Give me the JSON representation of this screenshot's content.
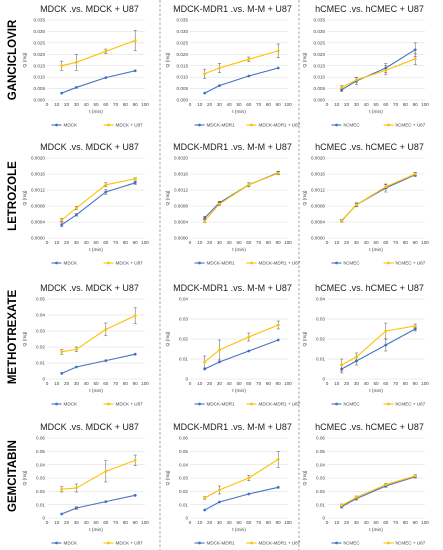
{
  "row_labels": [
    "GANCICLOVIR",
    "LETROZOLE",
    "METHOTREXATE",
    "GEMCITABIN"
  ],
  "colors": {
    "series1": "#4472c4",
    "series2": "#ffc000",
    "divider": "#7f7f7f",
    "grid": "#d9d9d9"
  },
  "chart_data": [
    {
      "type": "line",
      "title": "MDCK .vs. MDCK + U87",
      "xlabel": "t (min)",
      "ylabel": "Q (mg)",
      "xlim": [
        0,
        100
      ],
      "xticks": [
        0,
        10,
        20,
        30,
        40,
        50,
        60,
        70,
        80,
        90,
        100
      ],
      "ylim": [
        0,
        0.035
      ],
      "yticks": [
        "0.000",
        "0.005",
        "0.010",
        "0.015",
        "0.020",
        "0.025",
        "0.030",
        "0.035"
      ],
      "x": [
        15,
        30,
        60,
        90
      ],
      "series": [
        {
          "name": "MDCK",
          "color": "#4472c4",
          "values": [
            0.003,
            0.0055,
            0.0098,
            0.0128
          ],
          "err": [
            0,
            0,
            0,
            0
          ]
        },
        {
          "name": "MDCK + U87",
          "color": "#ffc000",
          "values": [
            0.015,
            0.0165,
            0.0213,
            0.026
          ],
          "err": [
            0.002,
            0.0035,
            0.001,
            0.0045
          ]
        }
      ]
    },
    {
      "type": "line",
      "title": "MDCK-MDR1 .vs. M-M + U87",
      "xlabel": "t (min)",
      "ylabel": "Q (mg)",
      "xlim": [
        0,
        100
      ],
      "xticks": [
        0,
        10,
        20,
        30,
        40,
        50,
        60,
        70,
        80,
        90,
        100
      ],
      "ylim": [
        0,
        0.035
      ],
      "yticks": [
        "0.000",
        "0.005",
        "0.010",
        "0.015",
        "0.020",
        "0.025",
        "0.030",
        "0.035"
      ],
      "x": [
        15,
        30,
        60,
        90
      ],
      "series": [
        {
          "name": "MDCK-MDR1",
          "color": "#4472c4",
          "values": [
            0.003,
            0.0063,
            0.0105,
            0.014
          ],
          "err": [
            0,
            0,
            0,
            0
          ]
        },
        {
          "name": "MDCK-MDR1 + U87",
          "color": "#ffc000",
          "values": [
            0.0115,
            0.014,
            0.0178,
            0.0215
          ],
          "err": [
            0.002,
            0.002,
            0.001,
            0.003
          ]
        }
      ]
    },
    {
      "type": "line",
      "title": "hCMEC .vs. hCMEC + U87",
      "xlabel": "t (min)",
      "ylabel": "Q (mg)",
      "xlim": [
        0,
        100
      ],
      "xticks": [
        0,
        10,
        20,
        30,
        40,
        50,
        60,
        70,
        80,
        90,
        100
      ],
      "ylim": [
        0,
        0.035
      ],
      "yticks": [
        "0.000",
        "0.005",
        "0.010",
        "0.015",
        "0.020",
        "0.025",
        "0.030",
        "0.035"
      ],
      "x": [
        15,
        30,
        60,
        90
      ],
      "series": [
        {
          "name": "hCMEC",
          "color": "#4472c4",
          "values": [
            0.0045,
            0.0083,
            0.014,
            0.022
          ],
          "err": [
            0.0008,
            0.0015,
            0.002,
            0.003
          ]
        },
        {
          "name": "hCMEC + U87",
          "color": "#ffc000",
          "values": [
            0.0055,
            0.0088,
            0.013,
            0.018
          ],
          "err": [
            0.0008,
            0.001,
            0.002,
            0.0025
          ]
        }
      ]
    },
    {
      "type": "line",
      "title": "MDCK .vs. MDCK + U87",
      "xlabel": "t (min)",
      "ylabel": "Q (mg)",
      "xlim": [
        0,
        100
      ],
      "xticks": [
        0,
        10,
        20,
        30,
        40,
        50,
        60,
        70,
        80,
        90,
        100
      ],
      "ylim": [
        0,
        0.002
      ],
      "yticks": [
        "0.0000",
        "0.0004",
        "0.0008",
        "0.0012",
        "0.0016",
        "0.0020"
      ],
      "x": [
        15,
        30,
        60,
        90
      ],
      "series": [
        {
          "name": "MDCK",
          "color": "#4472c4",
          "values": [
            0.00033,
            0.00058,
            0.00115,
            0.00138
          ],
          "err": [
            5e-05,
            3e-05,
            6e-05,
            4e-05
          ]
        },
        {
          "name": "MDCK + U87",
          "color": "#ffc000",
          "values": [
            0.00045,
            0.00075,
            0.00133,
            0.00148
          ],
          "err": [
            4e-05,
            4e-05,
            5e-05,
            3e-05
          ]
        }
      ]
    },
    {
      "type": "line",
      "title": "MDCK-MDR1 .vs. M-M + U87",
      "xlabel": "t (min)",
      "ylabel": "Q (mg)",
      "xlim": [
        0,
        100
      ],
      "xticks": [
        0,
        10,
        20,
        30,
        40,
        50,
        60,
        70,
        80,
        90,
        100
      ],
      "ylim": [
        0,
        0.002
      ],
      "yticks": [
        "0.0000",
        "0.0004",
        "0.0008",
        "0.0012",
        "0.0016",
        "0.0020"
      ],
      "x": [
        15,
        30,
        60,
        90
      ],
      "series": [
        {
          "name": "MDCK-MDR1",
          "color": "#4472c4",
          "values": [
            0.0005,
            0.00088,
            0.00133,
            0.00163
          ],
          "err": [
            4e-05,
            4e-05,
            5e-05,
            4e-05
          ]
        },
        {
          "name": "MDCK-MDR1 + U87",
          "color": "#ffc000",
          "values": [
            0.00043,
            0.00085,
            0.00133,
            0.00162
          ],
          "err": [
            4e-05,
            4e-05,
            5e-05,
            4e-05
          ]
        }
      ]
    },
    {
      "type": "line",
      "title": "hCMEC .vs. hCMEC + U87",
      "xlabel": "t (min)",
      "ylabel": "Q (mg)",
      "xlim": [
        0,
        100
      ],
      "xticks": [
        0,
        10,
        20,
        30,
        40,
        50,
        60,
        70,
        80,
        90,
        100
      ],
      "ylim": [
        0,
        0.002
      ],
      "yticks": [
        "0.0000",
        "0.0004",
        "0.0008",
        "0.0012",
        "0.0016",
        "0.0020"
      ],
      "x": [
        15,
        30,
        60,
        90
      ],
      "series": [
        {
          "name": "hCMEC",
          "color": "#4472c4",
          "values": [
            0.00043,
            0.00083,
            0.00125,
            0.00158
          ],
          "err": [
            3e-05,
            5e-05,
            0.0001,
            5e-05
          ]
        },
        {
          "name": "hCMEC + U87",
          "color": "#ffc000",
          "values": [
            0.00043,
            0.00083,
            0.00128,
            0.0016
          ],
          "err": [
            3e-05,
            4e-05,
            5e-05,
            4e-05
          ]
        }
      ]
    },
    {
      "type": "line",
      "title": "MDCK .vs. MDCK + U87",
      "xlabel": "t (min)",
      "ylabel": "Q (mg)",
      "xlim": [
        0,
        100
      ],
      "xticks": [
        0,
        10,
        20,
        30,
        40,
        50,
        60,
        70,
        80,
        90,
        100
      ],
      "ylim": [
        0,
        0.05
      ],
      "yticks": [
        "0",
        "0.01",
        "0.02",
        "0.03",
        "0.04",
        "0.05"
      ],
      "x": [
        15,
        30,
        60,
        90
      ],
      "series": [
        {
          "name": "MDCK",
          "color": "#4472c4",
          "values": [
            0.0035,
            0.0075,
            0.0115,
            0.0155
          ],
          "err": [
            0,
            0,
            0,
            0
          ]
        },
        {
          "name": "MDCK + U87",
          "color": "#ffc000",
          "values": [
            0.017,
            0.0185,
            0.031,
            0.0395
          ],
          "err": [
            0.0015,
            0.0015,
            0.004,
            0.005
          ]
        }
      ]
    },
    {
      "type": "line",
      "title": "MDCK-MDR1 .vs. M-M + U87",
      "xlabel": "t (min)",
      "ylabel": "Q (mg)",
      "xlim": [
        0,
        100
      ],
      "xticks": [
        0,
        10,
        20,
        30,
        40,
        50,
        60,
        70,
        80,
        90,
        100
      ],
      "ylim": [
        0,
        0.04
      ],
      "yticks": [
        "0",
        "0.01",
        "0.02",
        "0.03",
        "0.04"
      ],
      "x": [
        15,
        30,
        60,
        90
      ],
      "series": [
        {
          "name": "MDCK-MDR1",
          "color": "#4472c4",
          "values": [
            0.005,
            0.0085,
            0.014,
            0.0195
          ],
          "err": [
            0,
            0,
            0,
            0
          ]
        },
        {
          "name": "MDCK-MDR1 + U87",
          "color": "#ffc000",
          "values": [
            0.0085,
            0.0145,
            0.021,
            0.027
          ],
          "err": [
            0.003,
            0.005,
            0.002,
            0.002
          ]
        }
      ]
    },
    {
      "type": "line",
      "title": "hCMEC .vs. hCMEC + U87",
      "xlabel": "t (min)",
      "ylabel": "Q (mg)",
      "xlim": [
        0,
        100
      ],
      "xticks": [
        0,
        10,
        20,
        30,
        40,
        50,
        60,
        70,
        80,
        90,
        100
      ],
      "ylim": [
        0,
        0.04
      ],
      "yticks": [
        "0",
        "0.01",
        "0.02",
        "0.03",
        "0.04"
      ],
      "x": [
        15,
        30,
        60,
        90
      ],
      "series": [
        {
          "name": "hCMEC",
          "color": "#4472c4",
          "values": [
            0.005,
            0.009,
            0.017,
            0.025
          ],
          "err": [
            0.002,
            0.002,
            0.003,
            0.001
          ]
        },
        {
          "name": "hCMEC + U87",
          "color": "#ffc000",
          "values": [
            0.007,
            0.011,
            0.024,
            0.0265
          ],
          "err": [
            0.003,
            0.002,
            0.004,
            0.001
          ]
        }
      ]
    },
    {
      "type": "line",
      "title": "MDCK .vs. MDCK + U87",
      "xlabel": "t (min)",
      "ylabel": "Q (mg)",
      "xlim": [
        0,
        100
      ],
      "xticks": [
        0,
        10,
        20,
        30,
        40,
        50,
        60,
        70,
        80,
        90,
        100
      ],
      "ylim": [
        0,
        0.06
      ],
      "yticks": [
        "0",
        "0.01",
        "0.02",
        "0.03",
        "0.04",
        "0.05",
        "0.06"
      ],
      "x": [
        15,
        30,
        60,
        90
      ],
      "series": [
        {
          "name": "MDCK",
          "color": "#4472c4",
          "values": [
            0.003,
            0.0075,
            0.0123,
            0.017
          ],
          "err": [
            0,
            0.001,
            0,
            0
          ]
        },
        {
          "name": "MDCK + U87",
          "color": "#ffc000",
          "values": [
            0.0215,
            0.0225,
            0.035,
            0.0432
          ],
          "err": [
            0.002,
            0.003,
            0.008,
            0.004
          ]
        }
      ]
    },
    {
      "type": "line",
      "title": "MDCK-MDR1 .vs. M-M + U87",
      "xlabel": "t (min)",
      "ylabel": "Q (mg)",
      "xlim": [
        0,
        100
      ],
      "xticks": [
        0,
        10,
        20,
        30,
        40,
        50,
        60,
        70,
        80,
        90,
        100
      ],
      "ylim": [
        0,
        0.06
      ],
      "yticks": [
        "0",
        "0.01",
        "0.02",
        "0.03",
        "0.04",
        "0.05",
        "0.06"
      ],
      "x": [
        15,
        30,
        60,
        90
      ],
      "series": [
        {
          "name": "MDCK-MDR1",
          "color": "#4472c4",
          "values": [
            0.006,
            0.012,
            0.018,
            0.023
          ],
          "err": [
            0,
            0,
            0,
            0
          ]
        },
        {
          "name": "MDCK-MDR1 + U87",
          "color": "#ffc000",
          "values": [
            0.015,
            0.021,
            0.03,
            0.044
          ],
          "err": [
            0.001,
            0.003,
            0.002,
            0.006
          ]
        }
      ]
    },
    {
      "type": "line",
      "title": "hCMEC .vs. hCMEC + U87",
      "xlabel": "t (min)",
      "ylabel": "Q (mg)",
      "xlim": [
        0,
        100
      ],
      "xticks": [
        0,
        10,
        20,
        30,
        40,
        50,
        60,
        70,
        80,
        90,
        100
      ],
      "ylim": [
        0,
        0.06
      ],
      "yticks": [
        "0",
        "0.01",
        "0.02",
        "0.03",
        "0.04",
        "0.05",
        "0.06"
      ],
      "x": [
        15,
        30,
        60,
        90
      ],
      "series": [
        {
          "name": "hCMEC",
          "color": "#4472c4",
          "values": [
            0.0085,
            0.0145,
            0.024,
            0.031
          ],
          "err": [
            0.001,
            0.001,
            0.001,
            0.001
          ]
        },
        {
          "name": "hCMEC + U87",
          "color": "#ffc000",
          "values": [
            0.0095,
            0.0155,
            0.025,
            0.0315
          ],
          "err": [
            0.001,
            0.001,
            0.001,
            0.001
          ]
        }
      ]
    }
  ]
}
